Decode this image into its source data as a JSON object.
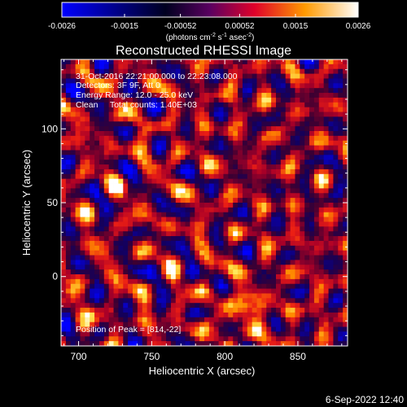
{
  "chart_data": {
    "type": "heatmap",
    "title": "Reconstructed RHESSI Image",
    "xlabel": "Heliocentric X (arcsec)",
    "ylabel": "Heliocentric Y (arcsec)",
    "xlim": [
      688,
      884
    ],
    "ylim": [
      -47,
      147
    ],
    "x_ticks": [
      "700",
      "750",
      "800",
      "850"
    ],
    "x_tick_values": [
      700,
      750,
      800,
      850
    ],
    "y_ticks": [
      "0",
      "50",
      "100"
    ],
    "y_tick_values": [
      0,
      50,
      100
    ],
    "colorbar": {
      "min": -0.0026,
      "max": 0.0026,
      "tick_labels": [
        "-0.0026",
        "-0.0015",
        "-0.00052",
        "0.00052",
        "0.0015",
        "0.0026"
      ],
      "tick_values": [
        -0.0026,
        -0.0015,
        -0.00052,
        0.00052,
        0.0015,
        0.0026
      ],
      "unit_pre": "(photons cm",
      "unit_exp1": "-2",
      "unit_mid": " s",
      "unit_exp2": "-1",
      "unit_mid2": " asec",
      "unit_exp3": "-2",
      "unit_post": ")",
      "colors": [
        "#0000ff",
        "#000000",
        "#7a0040",
        "#ff0000",
        "#ffb000",
        "#ffffff"
      ]
    },
    "annotations": {
      "time_range": "31-Oct-2016 22:21:00.000 to 22:23:08.000",
      "detectors": "Detectors: 3F 9F, Att 0",
      "energy": "Energy Range: 12.0 - 25.0 keV",
      "method": "Clean     Total counts: 1.40E+03",
      "peak": "Position of Peak = [814,-22]"
    },
    "peak": [
      814,
      -22
    ],
    "footer_date": "6-Sep-2022 12:40"
  }
}
